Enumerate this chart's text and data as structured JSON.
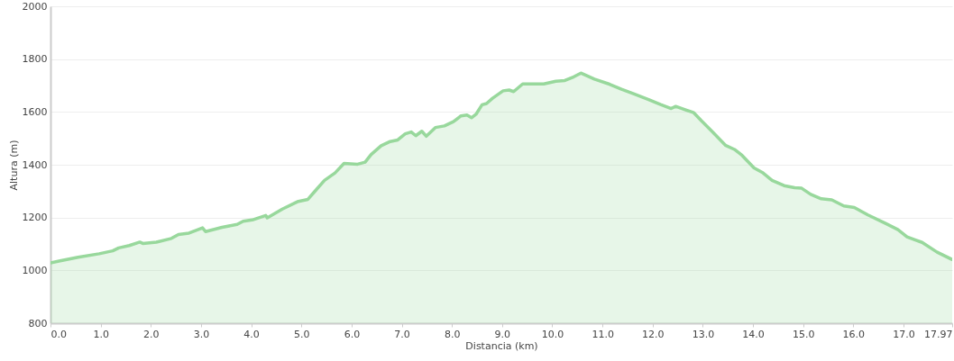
{
  "chart_data": {
    "type": "area",
    "xlabel": "Distancia   (km)",
    "ylabel": "Altura (m)",
    "xlim": [
      0,
      17.97
    ],
    "ylim": [
      800,
      2000
    ],
    "xticks": [
      {
        "value": 0,
        "label": "0.0"
      },
      {
        "value": 1,
        "label": "1.0"
      },
      {
        "value": 2,
        "label": "2.0"
      },
      {
        "value": 3,
        "label": "3.0"
      },
      {
        "value": 4,
        "label": "4.0"
      },
      {
        "value": 5,
        "label": "5.0"
      },
      {
        "value": 6,
        "label": "6.0"
      },
      {
        "value": 7,
        "label": "7.0"
      },
      {
        "value": 8,
        "label": "8.0"
      },
      {
        "value": 9,
        "label": "9.0"
      },
      {
        "value": 10,
        "label": "10.0"
      },
      {
        "value": 11,
        "label": "11.0"
      },
      {
        "value": 12,
        "label": "12.0"
      },
      {
        "value": 13,
        "label": "13.0"
      },
      {
        "value": 14,
        "label": "14.0"
      },
      {
        "value": 15,
        "label": "15.0"
      },
      {
        "value": 16,
        "label": "16.0"
      },
      {
        "value": 17,
        "label": "17.0"
      },
      17.97
    ],
    "yticks": [
      800,
      1000,
      1200,
      1400,
      1600,
      1800,
      2000
    ],
    "grid": "y",
    "x": [
      0,
      0.19,
      0.55,
      0.97,
      1.24,
      1.36,
      1.57,
      1.78,
      1.84,
      2.11,
      2.41,
      2.55,
      2.76,
      3.03,
      3.09,
      3.42,
      3.72,
      3.84,
      4.02,
      4.29,
      4.32,
      4.62,
      4.92,
      5.13,
      5.28,
      5.46,
      5.67,
      5.85,
      6.12,
      6.27,
      6.39,
      6.59,
      6.77,
      6.92,
      7.07,
      7.19,
      7.28,
      7.4,
      7.49,
      7.67,
      7.85,
      8.03,
      8.18,
      8.3,
      8.39,
      8.48,
      8.6,
      8.69,
      8.81,
      9.02,
      9.14,
      9.23,
      9.41,
      9.83,
      10.07,
      10.25,
      10.43,
      10.57,
      10.84,
      11.14,
      11.38,
      11.62,
      11.92,
      12.16,
      12.37,
      12.46,
      12.82,
      12.97,
      13.18,
      13.45,
      13.63,
      13.78,
      14.02,
      14.2,
      14.38,
      14.62,
      14.83,
      14.97,
      15.15,
      15.36,
      15.57,
      15.81,
      16.02,
      16.29,
      16.65,
      16.89,
      17.07,
      17.37,
      17.67,
      17.97
    ],
    "series": [
      {
        "color": "#98d89c",
        "values": [
          1028,
          1036,
          1050,
          1063,
          1074,
          1085,
          1094,
          1107,
          1102,
          1107,
          1121,
          1136,
          1141,
          1161,
          1147,
          1163,
          1174,
          1186,
          1191,
          1208,
          1199,
          1232,
          1260,
          1269,
          1302,
          1341,
          1369,
          1405,
          1402,
          1410,
          1439,
          1472,
          1488,
          1494,
          1517,
          1524,
          1510,
          1527,
          1508,
          1541,
          1547,
          1563,
          1585,
          1588,
          1578,
          1591,
          1627,
          1632,
          1652,
          1680,
          1683,
          1677,
          1706,
          1706,
          1716,
          1719,
          1733,
          1747,
          1724,
          1705,
          1686,
          1669,
          1647,
          1628,
          1613,
          1621,
          1597,
          1567,
          1527,
          1474,
          1458,
          1436,
          1388,
          1369,
          1341,
          1321,
          1313,
          1311,
          1288,
          1271,
          1267,
          1244,
          1238,
          1210,
          1177,
          1154,
          1127,
          1106,
          1069,
          1041
        ]
      }
    ]
  }
}
